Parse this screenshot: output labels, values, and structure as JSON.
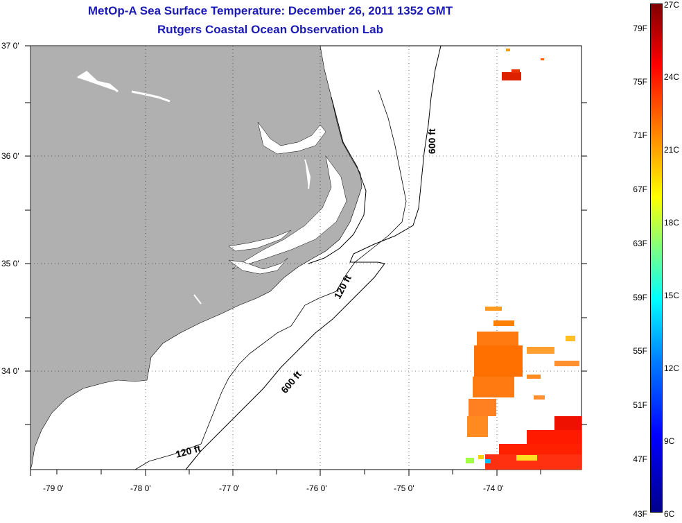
{
  "title": {
    "line1": "MetOp-A Sea Surface Temperature:  December 26, 2011 1352 GMT",
    "line2": "Rutgers Coastal Ocean Observation Lab"
  },
  "map": {
    "lat_labels": [
      "37 0'",
      "36 0'",
      "35 0'",
      "34 0'"
    ],
    "lon_labels": [
      "-79 0'",
      "-78 0'",
      "-77 0'",
      "-76 0'",
      "-75 0'",
      "-74 0'"
    ],
    "contour_labels": [
      "600 ft",
      "120 ft",
      "600 ft",
      "120 ft"
    ],
    "land_color": "#b0b0b0",
    "region": "North Carolina coast, Outer Banks"
  },
  "colorbar": {
    "fahrenheit": [
      "79F",
      "75F",
      "71F",
      "67F",
      "63F",
      "59F",
      "55F",
      "51F",
      "47F",
      "43F"
    ],
    "celsius": [
      "27C",
      "24C",
      "21C",
      "18C",
      "15C",
      "12C",
      "9C",
      "6C"
    ],
    "min_f": 43,
    "max_f": 79,
    "min_c": 6,
    "max_c": 27
  }
}
